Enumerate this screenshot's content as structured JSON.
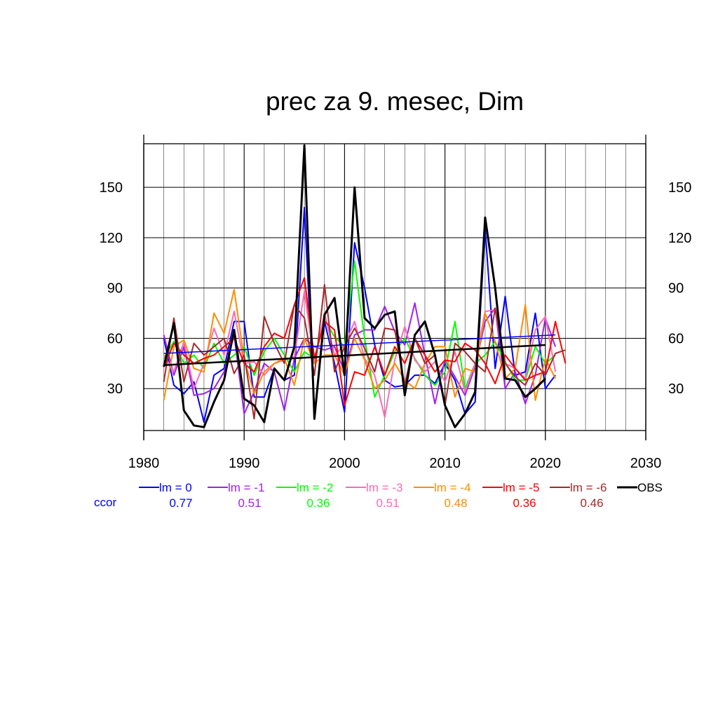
{
  "chart_data": {
    "type": "line",
    "title": "prec za 9. mesec, Dim",
    "xlabel": "",
    "ylabel": "",
    "xlim": [
      1980,
      2030
    ],
    "ylim": [
      5,
      176
    ],
    "xticks": [
      1980,
      1990,
      2000,
      2010,
      2020,
      2030
    ],
    "yticks": [
      30,
      60,
      90,
      120,
      150
    ],
    "grid": true,
    "legend_position": "bottom",
    "ccor_label": "ccor",
    "series": [
      {
        "name": "lm = 0",
        "color": "#0000ff",
        "ccor": "0.77",
        "x": [
          1982,
          1983,
          1984,
          1985,
          1986,
          1987,
          1988,
          1989,
          1990,
          1991,
          1992,
          1993,
          1994,
          1995,
          1996,
          1997,
          1998,
          1999,
          2000,
          2001,
          2002,
          2003,
          2004,
          2005,
          2006,
          2007,
          2008,
          2009,
          2010,
          2011,
          2012,
          2013,
          2014,
          2015,
          2016,
          2017,
          2018,
          2019,
          2020,
          2021
        ],
        "y": [
          60,
          32,
          27,
          34,
          10,
          38,
          42,
          70,
          70,
          25,
          25,
          42,
          35,
          38,
          138,
          15,
          70,
          45,
          16,
          117,
          90,
          56,
          35,
          31,
          32,
          38,
          38,
          33,
          45,
          35,
          15,
          22,
          125,
          42,
          85,
          38,
          40,
          75,
          30,
          38
        ]
      },
      {
        "name": "lm = -1",
        "color": "#a020f0",
        "ccor": "0.51",
        "x": [
          1982,
          1983,
          1984,
          1985,
          1986,
          1987,
          1988,
          1989,
          1990,
          1991,
          1992,
          1993,
          1994,
          1995,
          1996,
          1997,
          1998,
          1999,
          2000,
          2001,
          2002,
          2003,
          2004,
          2005,
          2006,
          2007,
          2008,
          2009,
          2010,
          2011,
          2012,
          2013,
          2014,
          2015,
          2016,
          2017,
          2018,
          2019,
          2020,
          2021
        ],
        "y": [
          62,
          38,
          55,
          26,
          27,
          30,
          40,
          62,
          15,
          28,
          45,
          40,
          17,
          48,
          60,
          55,
          53,
          55,
          40,
          62,
          65,
          65,
          79,
          64,
          56,
          81,
          50,
          21,
          47,
          37,
          26,
          43,
          70,
          78,
          30,
          40,
          21,
          38,
          72,
          55
        ]
      },
      {
        "name": "lm = -2",
        "color": "#00ff00",
        "ccor": "0.36",
        "x": [
          1982,
          1983,
          1984,
          1985,
          1986,
          1987,
          1988,
          1989,
          1990,
          1991,
          1992,
          1993,
          1994,
          1995,
          1996,
          1997,
          1998,
          1999,
          2000,
          2001,
          2002,
          2003,
          2004,
          2005,
          2006,
          2007,
          2008,
          2009,
          2010,
          2011,
          2012,
          2013,
          2014,
          2015,
          2016,
          2017,
          2018,
          2019,
          2020,
          2021
        ],
        "y": [
          48,
          58,
          45,
          50,
          42,
          57,
          45,
          50,
          55,
          38,
          52,
          60,
          50,
          40,
          52,
          48,
          71,
          61,
          55,
          106,
          60,
          25,
          38,
          52,
          60,
          48,
          38,
          32,
          40,
          70,
          30,
          45,
          50,
          58,
          46,
          35,
          35,
          55,
          45,
          50
        ]
      },
      {
        "name": "lm = -3",
        "color": "#ff69b4",
        "ccor": "0.51",
        "x": [
          1982,
          1983,
          1984,
          1985,
          1986,
          1987,
          1988,
          1989,
          1990,
          1991,
          1992,
          1993,
          1994,
          1995,
          1996,
          1997,
          1998,
          1999,
          2000,
          2001,
          2002,
          2003,
          2004,
          2005,
          2006,
          2007,
          2008,
          2009,
          2010,
          2011,
          2012,
          2013,
          2014,
          2015,
          2016,
          2017,
          2018,
          2019,
          2020,
          2021
        ],
        "y": [
          50,
          40,
          58,
          30,
          45,
          66,
          50,
          76,
          45,
          46,
          38,
          45,
          47,
          49,
          88,
          45,
          75,
          50,
          56,
          70,
          48,
          38,
          13,
          47,
          67,
          47,
          40,
          46,
          34,
          52,
          28,
          45,
          76,
          77,
          45,
          42,
          36,
          65,
          73,
          40
        ]
      },
      {
        "name": "lm = -4",
        "color": "#ff8c00",
        "ccor": "0.48",
        "x": [
          1982,
          1983,
          1984,
          1985,
          1986,
          1987,
          1988,
          1989,
          1990,
          1991,
          1992,
          1993,
          1994,
          1995,
          1996,
          1997,
          1998,
          1999,
          2000,
          2001,
          2002,
          2003,
          2004,
          2005,
          2006,
          2007,
          2008,
          2009,
          2010,
          2011,
          2012,
          2013,
          2014,
          2015,
          2016,
          2017,
          2018,
          2019,
          2020,
          2021
        ],
        "y": [
          23,
          55,
          59,
          42,
          40,
          75,
          63,
          89,
          48,
          27,
          40,
          45,
          48,
          32,
          60,
          45,
          50,
          50,
          38,
          60,
          47,
          30,
          35,
          45,
          35,
          30,
          45,
          55,
          55,
          25,
          42,
          40,
          75,
          58,
          36,
          42,
          80,
          23,
          48,
          36
        ]
      },
      {
        "name": "lm = -5",
        "color": "#ff0000",
        "ccor": "0.36",
        "x": [
          1982,
          1983,
          1984,
          1985,
          1986,
          1987,
          1988,
          1989,
          1990,
          1991,
          1992,
          1993,
          1994,
          1995,
          1996,
          1997,
          1998,
          1999,
          2000,
          2001,
          2002,
          2003,
          2004,
          2005,
          2006,
          2007,
          2008,
          2009,
          2010,
          2011,
          2012,
          2013,
          2014,
          2015,
          2016,
          2017,
          2018,
          2019,
          2020,
          2021,
          2022
        ],
        "y": [
          43,
          57,
          50,
          45,
          48,
          50,
          55,
          60,
          45,
          40,
          55,
          63,
          60,
          80,
          96,
          48,
          70,
          65,
          20,
          40,
          38,
          55,
          38,
          55,
          45,
          60,
          50,
          40,
          47,
          46,
          57,
          53,
          45,
          33,
          50,
          42,
          35,
          38,
          40,
          70,
          45
        ]
      },
      {
        "name": "lm = -6",
        "color": "#a52a2a",
        "ccor": "0.46",
        "x": [
          1982,
          1983,
          1984,
          1985,
          1986,
          1987,
          1988,
          1989,
          1990,
          1991,
          1992,
          1993,
          1994,
          1995,
          1996,
          1997,
          1998,
          1999,
          2000,
          2001,
          2002,
          2003,
          2004,
          2005,
          2006,
          2007,
          2008,
          2009,
          2010,
          2011,
          2012,
          2013,
          2014,
          2015,
          2016,
          2017,
          2018,
          2019,
          2020,
          2021,
          2022
        ],
        "y": [
          34,
          72,
          34,
          57,
          50,
          55,
          60,
          39,
          50,
          12,
          73,
          57,
          45,
          80,
          72,
          38,
          92,
          40,
          55,
          66,
          54,
          40,
          66,
          65,
          32,
          60,
          45,
          50,
          20,
          57,
          52,
          45,
          40,
          78,
          45,
          37,
          32,
          45,
          38,
          51,
          53
        ]
      },
      {
        "name": "OBS",
        "color": "#000000",
        "ccor": "",
        "x": [
          1982,
          1983,
          1984,
          1985,
          1986,
          1987,
          1988,
          1989,
          1990,
          1991,
          1992,
          1993,
          1994,
          1995,
          1996,
          1997,
          1998,
          1999,
          2000,
          2001,
          2002,
          2003,
          2004,
          2005,
          2006,
          2007,
          2008,
          2009,
          2010,
          2011,
          2012,
          2013,
          2014,
          2015,
          2016,
          2017,
          2018,
          2019,
          2020
        ],
        "y": [
          43,
          69,
          17,
          8,
          7,
          22,
          35,
          65,
          24,
          20,
          10,
          42,
          35,
          55,
          175,
          12,
          74,
          84,
          38,
          150,
          72,
          66,
          74,
          76,
          26,
          62,
          70,
          50,
          20,
          7,
          15,
          28,
          132,
          90,
          36,
          35,
          25,
          30,
          36
        ]
      }
    ],
    "trend_lines": [
      {
        "color": "#0000ff",
        "x": [
          1982,
          2021
        ],
        "y": [
          51,
          62
        ]
      },
      {
        "color": "#000000",
        "x": [
          1982,
          2020
        ],
        "y": [
          44,
          56
        ]
      }
    ]
  }
}
